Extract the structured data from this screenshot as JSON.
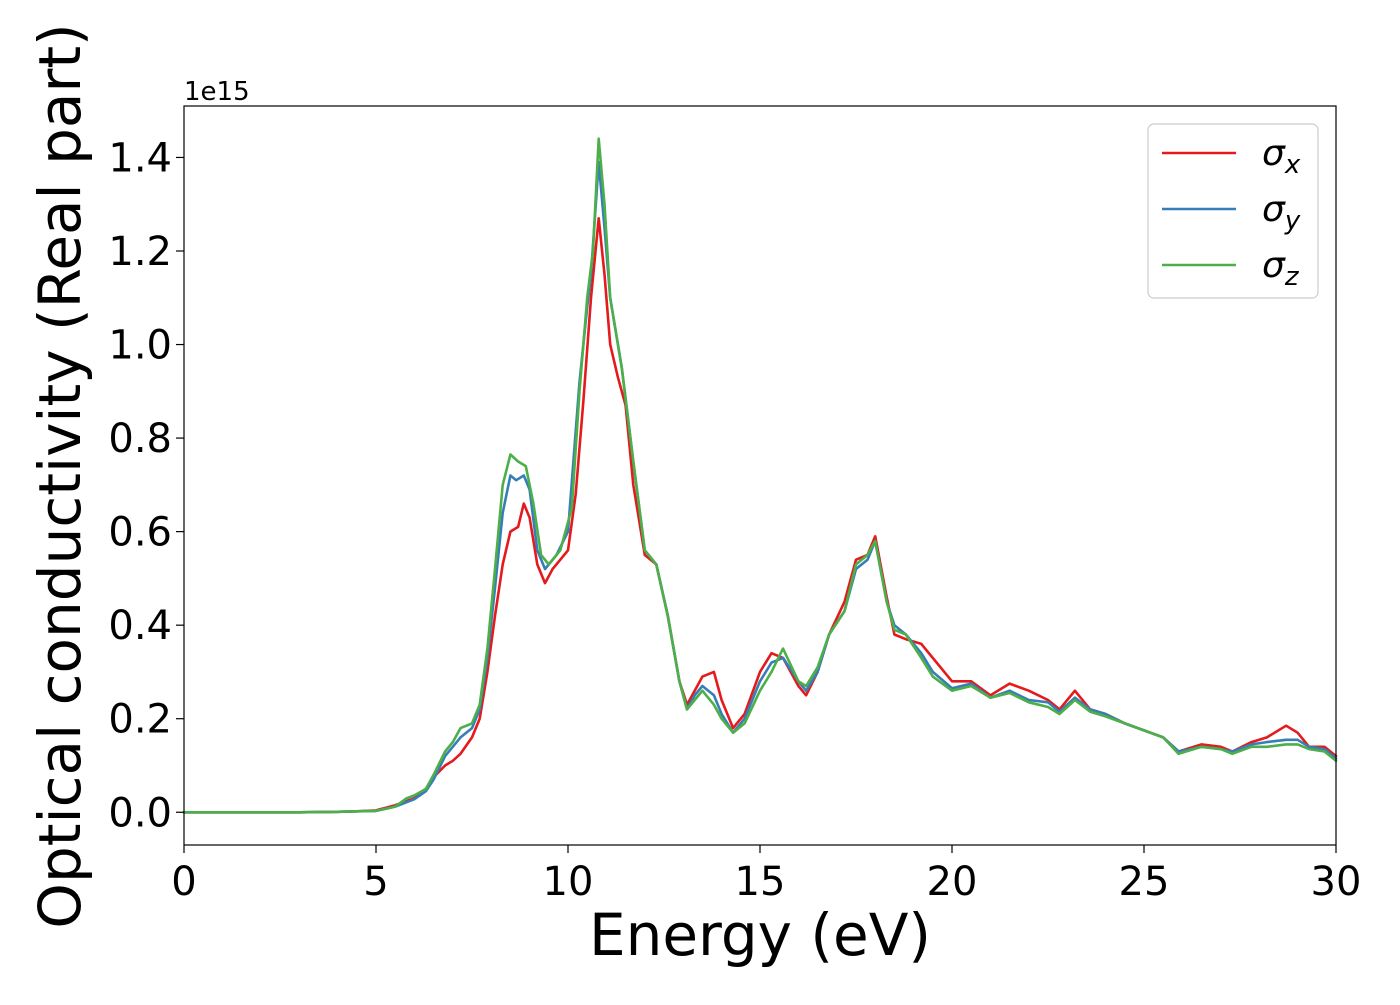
{
  "chart_data": {
    "type": "line",
    "xlabel": "Energy (eV)",
    "ylabel": "Optical conductivity (Real part)",
    "y_offset_label": "1e15",
    "xlim": [
      0,
      30
    ],
    "ylim": [
      -0.07,
      1.51
    ],
    "x_ticks": [
      0,
      5,
      10,
      15,
      20,
      25,
      30
    ],
    "x_tick_labels": [
      "0",
      "5",
      "10",
      "15",
      "20",
      "25",
      "30"
    ],
    "y_ticks": [
      0.0,
      0.2,
      0.4,
      0.6,
      0.8,
      1.0,
      1.2,
      1.4
    ],
    "y_tick_labels": [
      "0.0",
      "0.2",
      "0.4",
      "0.6",
      "0.8",
      "1.0",
      "1.2",
      "1.4"
    ],
    "grid": false,
    "legend_position": "top-right",
    "series": [
      {
        "name": "σx",
        "legend_symbol": "σ",
        "legend_sub": "x",
        "color": "#e41a1c",
        "points": [
          [
            0,
            0
          ],
          [
            1,
            0
          ],
          [
            2,
            0
          ],
          [
            3,
            0
          ],
          [
            4,
            0.001
          ],
          [
            4.5,
            0.002
          ],
          [
            5,
            0.004
          ],
          [
            5.5,
            0.015
          ],
          [
            6,
            0.03
          ],
          [
            6.3,
            0.05
          ],
          [
            6.5,
            0.075
          ],
          [
            6.8,
            0.1
          ],
          [
            7,
            0.11
          ],
          [
            7.2,
            0.125
          ],
          [
            7.5,
            0.16
          ],
          [
            7.7,
            0.2
          ],
          [
            7.9,
            0.3
          ],
          [
            8.1,
            0.42
          ],
          [
            8.3,
            0.53
          ],
          [
            8.5,
            0.6
          ],
          [
            8.7,
            0.61
          ],
          [
            8.85,
            0.66
          ],
          [
            9,
            0.63
          ],
          [
            9.2,
            0.53
          ],
          [
            9.4,
            0.49
          ],
          [
            9.6,
            0.52
          ],
          [
            9.8,
            0.54
          ],
          [
            10,
            0.56
          ],
          [
            10.2,
            0.68
          ],
          [
            10.4,
            0.88
          ],
          [
            10.6,
            1.1
          ],
          [
            10.8,
            1.27
          ],
          [
            10.95,
            1.15
          ],
          [
            11.1,
            1.0
          ],
          [
            11.3,
            0.93
          ],
          [
            11.5,
            0.87
          ],
          [
            11.7,
            0.7
          ],
          [
            12,
            0.55
          ],
          [
            12.3,
            0.53
          ],
          [
            12.6,
            0.42
          ],
          [
            12.9,
            0.28
          ],
          [
            13.1,
            0.23
          ],
          [
            13.3,
            0.26
          ],
          [
            13.5,
            0.29
          ],
          [
            13.8,
            0.3
          ],
          [
            14,
            0.24
          ],
          [
            14.3,
            0.18
          ],
          [
            14.6,
            0.21
          ],
          [
            15,
            0.3
          ],
          [
            15.3,
            0.34
          ],
          [
            15.6,
            0.33
          ],
          [
            16,
            0.27
          ],
          [
            16.2,
            0.25
          ],
          [
            16.5,
            0.3
          ],
          [
            16.8,
            0.38
          ],
          [
            17.2,
            0.45
          ],
          [
            17.5,
            0.54
          ],
          [
            17.8,
            0.55
          ],
          [
            18,
            0.59
          ],
          [
            18.3,
            0.46
          ],
          [
            18.5,
            0.38
          ],
          [
            18.8,
            0.37
          ],
          [
            19.2,
            0.36
          ],
          [
            19.5,
            0.33
          ],
          [
            20,
            0.28
          ],
          [
            20.5,
            0.28
          ],
          [
            21,
            0.25
          ],
          [
            21.5,
            0.275
          ],
          [
            22,
            0.26
          ],
          [
            22.5,
            0.24
          ],
          [
            22.8,
            0.22
          ],
          [
            23.2,
            0.26
          ],
          [
            23.6,
            0.22
          ],
          [
            24,
            0.21
          ],
          [
            24.5,
            0.19
          ],
          [
            25,
            0.175
          ],
          [
            25.5,
            0.16
          ],
          [
            25.9,
            0.13
          ],
          [
            26.5,
            0.145
          ],
          [
            27,
            0.14
          ],
          [
            27.3,
            0.13
          ],
          [
            27.8,
            0.15
          ],
          [
            28.2,
            0.16
          ],
          [
            28.7,
            0.185
          ],
          [
            29,
            0.17
          ],
          [
            29.3,
            0.14
          ],
          [
            29.7,
            0.14
          ],
          [
            30,
            0.12
          ]
        ]
      },
      {
        "name": "σy",
        "legend_symbol": "σ",
        "legend_sub": "y",
        "color": "#377eb8",
        "points": [
          [
            0,
            0
          ],
          [
            1,
            0
          ],
          [
            2,
            0
          ],
          [
            3,
            0
          ],
          [
            4,
            0.001
          ],
          [
            4.5,
            0.002
          ],
          [
            5,
            0.003
          ],
          [
            5.5,
            0.012
          ],
          [
            6,
            0.028
          ],
          [
            6.3,
            0.045
          ],
          [
            6.5,
            0.07
          ],
          [
            6.8,
            0.12
          ],
          [
            7,
            0.14
          ],
          [
            7.2,
            0.16
          ],
          [
            7.5,
            0.18
          ],
          [
            7.7,
            0.22
          ],
          [
            7.9,
            0.33
          ],
          [
            8.1,
            0.48
          ],
          [
            8.3,
            0.64
          ],
          [
            8.5,
            0.72
          ],
          [
            8.65,
            0.71
          ],
          [
            8.85,
            0.72
          ],
          [
            9,
            0.69
          ],
          [
            9.2,
            0.56
          ],
          [
            9.4,
            0.52
          ],
          [
            9.7,
            0.55
          ],
          [
            10,
            0.6
          ],
          [
            10.3,
            0.92
          ],
          [
            10.5,
            1.08
          ],
          [
            10.6,
            1.15
          ],
          [
            10.8,
            1.39
          ],
          [
            10.95,
            1.25
          ],
          [
            11.1,
            1.1
          ],
          [
            11.4,
            0.95
          ],
          [
            11.7,
            0.75
          ],
          [
            12,
            0.56
          ],
          [
            12.3,
            0.53
          ],
          [
            12.6,
            0.42
          ],
          [
            12.9,
            0.28
          ],
          [
            13.1,
            0.22
          ],
          [
            13.3,
            0.25
          ],
          [
            13.5,
            0.27
          ],
          [
            13.8,
            0.25
          ],
          [
            14,
            0.21
          ],
          [
            14.3,
            0.17
          ],
          [
            14.6,
            0.2
          ],
          [
            15,
            0.28
          ],
          [
            15.3,
            0.32
          ],
          [
            15.6,
            0.33
          ],
          [
            16,
            0.28
          ],
          [
            16.2,
            0.26
          ],
          [
            16.5,
            0.3
          ],
          [
            16.8,
            0.38
          ],
          [
            17.2,
            0.43
          ],
          [
            17.5,
            0.52
          ],
          [
            17.8,
            0.54
          ],
          [
            18,
            0.58
          ],
          [
            18.3,
            0.45
          ],
          [
            18.5,
            0.4
          ],
          [
            18.8,
            0.38
          ],
          [
            19.2,
            0.34
          ],
          [
            19.5,
            0.3
          ],
          [
            20,
            0.265
          ],
          [
            20.5,
            0.275
          ],
          [
            21,
            0.245
          ],
          [
            21.5,
            0.26
          ],
          [
            22,
            0.24
          ],
          [
            22.5,
            0.235
          ],
          [
            22.8,
            0.215
          ],
          [
            23.2,
            0.245
          ],
          [
            23.6,
            0.22
          ],
          [
            24,
            0.21
          ],
          [
            24.5,
            0.19
          ],
          [
            25,
            0.175
          ],
          [
            25.5,
            0.16
          ],
          [
            25.9,
            0.13
          ],
          [
            26.5,
            0.14
          ],
          [
            27,
            0.135
          ],
          [
            27.3,
            0.13
          ],
          [
            27.8,
            0.145
          ],
          [
            28.2,
            0.15
          ],
          [
            28.7,
            0.155
          ],
          [
            29,
            0.155
          ],
          [
            29.3,
            0.14
          ],
          [
            29.7,
            0.135
          ],
          [
            30,
            0.115
          ]
        ]
      },
      {
        "name": "σz",
        "legend_symbol": "σ",
        "legend_sub": "z",
        "color": "#4daf4a",
        "points": [
          [
            0,
            0
          ],
          [
            1,
            0
          ],
          [
            2,
            0
          ],
          [
            3,
            0
          ],
          [
            4,
            0.001
          ],
          [
            4.5,
            0.002
          ],
          [
            5,
            0.003
          ],
          [
            5.5,
            0.012
          ],
          [
            5.8,
            0.03
          ],
          [
            6,
            0.036
          ],
          [
            6.3,
            0.05
          ],
          [
            6.5,
            0.08
          ],
          [
            6.8,
            0.13
          ],
          [
            7,
            0.15
          ],
          [
            7.2,
            0.18
          ],
          [
            7.5,
            0.19
          ],
          [
            7.7,
            0.23
          ],
          [
            7.9,
            0.35
          ],
          [
            8.1,
            0.52
          ],
          [
            8.3,
            0.7
          ],
          [
            8.5,
            0.765
          ],
          [
            8.7,
            0.75
          ],
          [
            8.9,
            0.74
          ],
          [
            9.1,
            0.66
          ],
          [
            9.3,
            0.55
          ],
          [
            9.5,
            0.53
          ],
          [
            9.8,
            0.56
          ],
          [
            10.1,
            0.65
          ],
          [
            10.3,
            0.9
          ],
          [
            10.5,
            1.1
          ],
          [
            10.65,
            1.2
          ],
          [
            10.8,
            1.44
          ],
          [
            10.95,
            1.3
          ],
          [
            11.1,
            1.1
          ],
          [
            11.4,
            0.95
          ],
          [
            11.7,
            0.75
          ],
          [
            12,
            0.56
          ],
          [
            12.3,
            0.53
          ],
          [
            12.6,
            0.42
          ],
          [
            12.9,
            0.28
          ],
          [
            13.1,
            0.22
          ],
          [
            13.3,
            0.24
          ],
          [
            13.5,
            0.26
          ],
          [
            13.8,
            0.23
          ],
          [
            14,
            0.2
          ],
          [
            14.3,
            0.17
          ],
          [
            14.6,
            0.19
          ],
          [
            15,
            0.26
          ],
          [
            15.3,
            0.3
          ],
          [
            15.6,
            0.35
          ],
          [
            16,
            0.28
          ],
          [
            16.2,
            0.27
          ],
          [
            16.5,
            0.31
          ],
          [
            16.8,
            0.38
          ],
          [
            17.2,
            0.43
          ],
          [
            17.5,
            0.53
          ],
          [
            17.8,
            0.55
          ],
          [
            18,
            0.58
          ],
          [
            18.3,
            0.45
          ],
          [
            18.5,
            0.39
          ],
          [
            18.8,
            0.38
          ],
          [
            19.2,
            0.33
          ],
          [
            19.5,
            0.29
          ],
          [
            20,
            0.26
          ],
          [
            20.5,
            0.27
          ],
          [
            21,
            0.245
          ],
          [
            21.5,
            0.255
          ],
          [
            22,
            0.235
          ],
          [
            22.5,
            0.225
          ],
          [
            22.8,
            0.21
          ],
          [
            23.2,
            0.24
          ],
          [
            23.6,
            0.215
          ],
          [
            24,
            0.205
          ],
          [
            24.5,
            0.19
          ],
          [
            25,
            0.175
          ],
          [
            25.5,
            0.16
          ],
          [
            25.9,
            0.125
          ],
          [
            26.5,
            0.14
          ],
          [
            27,
            0.135
          ],
          [
            27.3,
            0.125
          ],
          [
            27.8,
            0.14
          ],
          [
            28.2,
            0.14
          ],
          [
            28.7,
            0.145
          ],
          [
            29,
            0.145
          ],
          [
            29.3,
            0.135
          ],
          [
            29.7,
            0.13
          ],
          [
            30,
            0.11
          ]
        ]
      }
    ]
  }
}
